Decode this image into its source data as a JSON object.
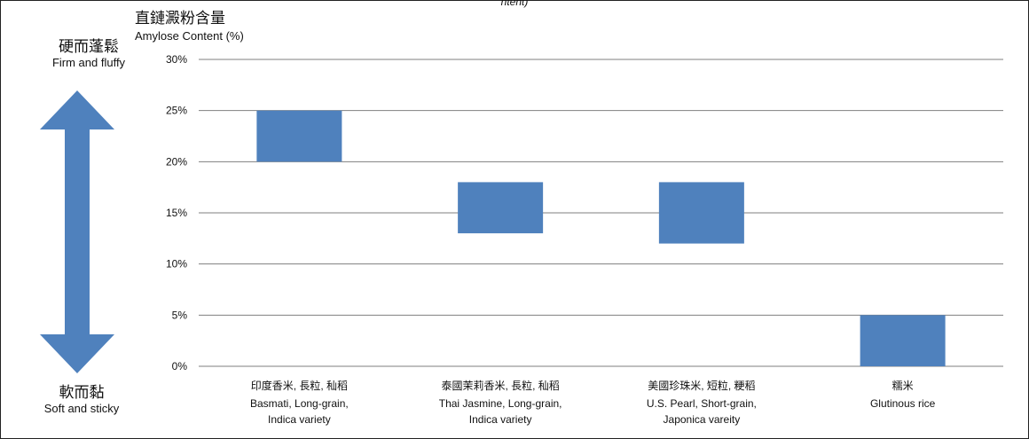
{
  "chart_data": {
    "type": "bar",
    "subtype": "floating-range",
    "ylabel_zh": "直鏈澱粉含量",
    "ylabel": "Amylose Content (%)",
    "ylim": [
      0,
      30
    ],
    "yticks": [
      "0%",
      "5%",
      "10%",
      "15%",
      "20%",
      "25%",
      "30%"
    ],
    "ytick_values": [
      0,
      5,
      10,
      15,
      20,
      25,
      30
    ],
    "grid": true,
    "bar_color": "#4f81bd",
    "categories": [
      {
        "zh": "印度香米, 長粒, 秈稻",
        "en1": "Basmati, Long-grain,",
        "en2": "Indica variety",
        "low": 20,
        "high": 25
      },
      {
        "zh": "泰國茉莉香米, 長粒, 秈稻",
        "en1": "Thai Jasmine, Long-grain,",
        "en2": "Indica variety",
        "low": 13,
        "high": 18
      },
      {
        "zh": "美國珍珠米, 短粒, 粳稻",
        "en1": "U.S. Pearl, Short-grain,",
        "en2": "Japonica vareity",
        "low": 12,
        "high": 18
      },
      {
        "zh": "糯米",
        "en1": "Glutinous rice",
        "en2": "",
        "low": 0,
        "high": 5
      }
    ]
  },
  "axis_annotation": {
    "top_zh": "硬而蓬鬆",
    "top_en": "Firm and fluffy",
    "bottom_zh": "軟而黏",
    "bottom_en": "Soft and sticky",
    "arrow_color": "#4f81bd"
  },
  "top_fragment": "ntent)"
}
